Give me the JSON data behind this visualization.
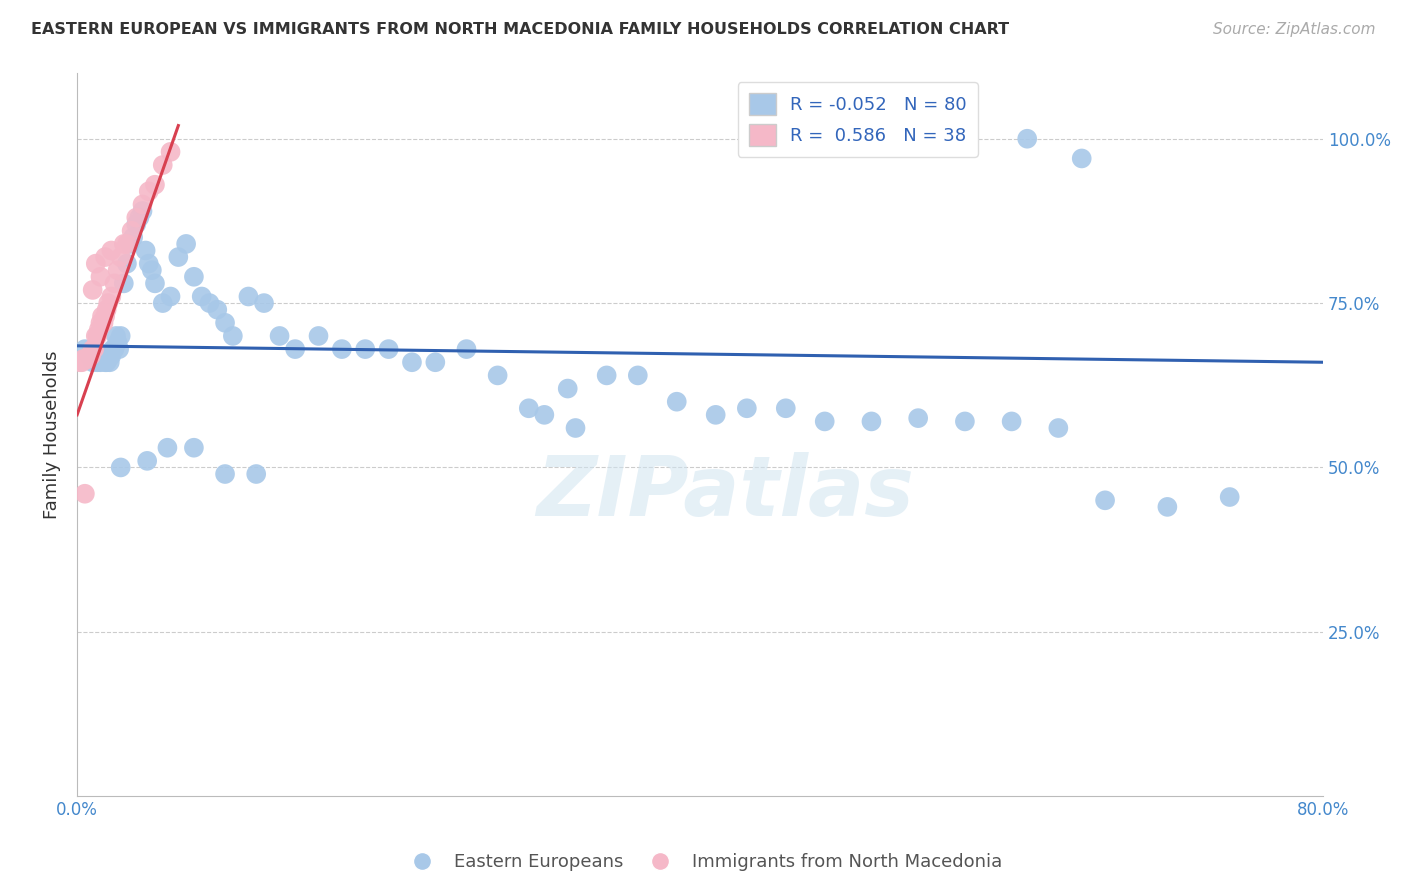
{
  "title": "EASTERN EUROPEAN VS IMMIGRANTS FROM NORTH MACEDONIA FAMILY HOUSEHOLDS CORRELATION CHART",
  "source": "Source: ZipAtlas.com",
  "ylabel": "Family Households",
  "xmin": 0.0,
  "xmax": 0.8,
  "ymin": 0.0,
  "ymax": 1.1,
  "blue_R": -0.052,
  "blue_N": 80,
  "pink_R": 0.586,
  "pink_N": 38,
  "blue_color": "#a8c8e8",
  "pink_color": "#f5b8c8",
  "blue_line_color": "#3060b0",
  "pink_line_color": "#d84050",
  "legend_label_blue": "Eastern Europeans",
  "legend_label_pink": "Immigrants from North Macedonia",
  "watermark": "ZIPatlas",
  "blue_x": [
    0.005,
    0.008,
    0.01,
    0.012,
    0.013,
    0.014,
    0.015,
    0.016,
    0.017,
    0.018,
    0.019,
    0.02,
    0.021,
    0.022,
    0.023,
    0.024,
    0.025,
    0.026,
    0.027,
    0.028,
    0.03,
    0.032,
    0.034,
    0.036,
    0.038,
    0.04,
    0.042,
    0.044,
    0.046,
    0.048,
    0.05,
    0.055,
    0.06,
    0.065,
    0.07,
    0.075,
    0.08,
    0.085,
    0.09,
    0.095,
    0.1,
    0.11,
    0.12,
    0.13,
    0.14,
    0.155,
    0.17,
    0.185,
    0.2,
    0.215,
    0.23,
    0.25,
    0.27,
    0.29,
    0.315,
    0.34,
    0.36,
    0.385,
    0.41,
    0.43,
    0.455,
    0.48,
    0.51,
    0.54,
    0.57,
    0.6,
    0.63,
    0.66,
    0.7,
    0.74,
    0.028,
    0.045,
    0.058,
    0.075,
    0.095,
    0.115,
    0.3,
    0.32,
    0.61,
    0.645
  ],
  "blue_y": [
    0.68,
    0.67,
    0.66,
    0.67,
    0.66,
    0.675,
    0.66,
    0.665,
    0.67,
    0.66,
    0.66,
    0.665,
    0.66,
    0.67,
    0.68,
    0.68,
    0.7,
    0.69,
    0.68,
    0.7,
    0.78,
    0.81,
    0.84,
    0.85,
    0.87,
    0.88,
    0.89,
    0.83,
    0.81,
    0.8,
    0.78,
    0.75,
    0.76,
    0.82,
    0.84,
    0.79,
    0.76,
    0.75,
    0.74,
    0.72,
    0.7,
    0.76,
    0.75,
    0.7,
    0.68,
    0.7,
    0.68,
    0.68,
    0.68,
    0.66,
    0.66,
    0.68,
    0.64,
    0.59,
    0.62,
    0.64,
    0.64,
    0.6,
    0.58,
    0.59,
    0.59,
    0.57,
    0.57,
    0.575,
    0.57,
    0.57,
    0.56,
    0.45,
    0.44,
    0.455,
    0.5,
    0.51,
    0.53,
    0.53,
    0.49,
    0.49,
    0.58,
    0.56,
    1.0,
    0.97
  ],
  "pink_x": [
    0.002,
    0.003,
    0.004,
    0.005,
    0.006,
    0.007,
    0.008,
    0.009,
    0.01,
    0.011,
    0.012,
    0.013,
    0.014,
    0.015,
    0.016,
    0.017,
    0.018,
    0.019,
    0.02,
    0.022,
    0.024,
    0.026,
    0.028,
    0.03,
    0.032,
    0.035,
    0.038,
    0.042,
    0.046,
    0.05,
    0.055,
    0.06,
    0.01,
    0.015,
    0.012,
    0.018,
    0.022,
    0.005
  ],
  "pink_y": [
    0.66,
    0.66,
    0.665,
    0.665,
    0.665,
    0.665,
    0.67,
    0.67,
    0.68,
    0.68,
    0.7,
    0.7,
    0.71,
    0.72,
    0.73,
    0.72,
    0.73,
    0.74,
    0.75,
    0.76,
    0.78,
    0.8,
    0.82,
    0.84,
    0.84,
    0.86,
    0.88,
    0.9,
    0.92,
    0.93,
    0.96,
    0.98,
    0.77,
    0.79,
    0.81,
    0.82,
    0.83,
    0.46
  ]
}
